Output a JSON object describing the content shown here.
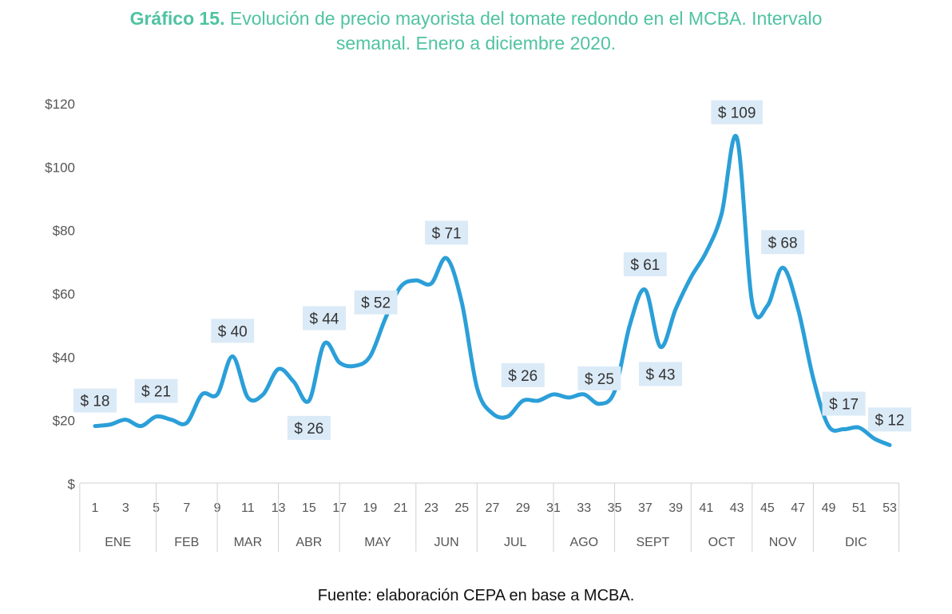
{
  "title": {
    "bold": "Gráfico 15.",
    "line1": "Evolución de precio mayorista del tomate redondo en el MCBA. Intervalo",
    "line2": "semanal. Enero a diciembre 2020."
  },
  "source": "Fuente: elaboración CEPA en base a MCBA.",
  "colors": {
    "title": "#4fc3a1",
    "line": "#2b9fd8",
    "label_bg": "#dbeaf7",
    "axis_text": "#555555",
    "axis_line": "#d0d0d0"
  },
  "chart_data": {
    "type": "line",
    "x": [
      1,
      2,
      3,
      4,
      5,
      6,
      7,
      8,
      9,
      10,
      11,
      12,
      13,
      14,
      15,
      16,
      17,
      18,
      19,
      20,
      21,
      22,
      23,
      24,
      25,
      26,
      27,
      28,
      29,
      30,
      31,
      32,
      33,
      34,
      35,
      36,
      37,
      38,
      39,
      40,
      41,
      42,
      43,
      44,
      45,
      46,
      47,
      48,
      49,
      50,
      51,
      52,
      53
    ],
    "values": [
      18,
      18.5,
      20,
      18,
      21,
      20,
      19,
      28,
      28,
      40,
      27,
      28,
      36,
      32,
      26,
      44,
      38,
      37,
      40,
      52,
      62,
      64,
      63,
      71,
      57,
      30,
      22,
      21,
      26,
      26,
      28,
      27,
      28,
      25,
      29,
      50,
      61,
      43,
      55,
      65,
      73,
      85,
      109,
      57,
      56,
      68,
      55,
      33,
      18,
      17,
      17.5,
      14,
      12
    ],
    "ylim": [
      0,
      120
    ],
    "y_ticks": [
      0,
      20,
      40,
      60,
      80,
      100,
      120
    ],
    "y_tick_labels": [
      "$",
      "$20",
      "$40",
      "$60",
      "$80",
      "$100",
      "$120"
    ],
    "x_tick_values": [
      1,
      3,
      5,
      7,
      9,
      11,
      13,
      15,
      17,
      19,
      21,
      23,
      25,
      27,
      29,
      31,
      33,
      35,
      37,
      39,
      41,
      43,
      45,
      47,
      49,
      51,
      53
    ],
    "x_tick_labels": [
      "1",
      "3",
      "5",
      "7",
      "9",
      "11",
      "13",
      "15",
      "17",
      "19",
      "21",
      "23",
      "25",
      "27",
      "29",
      "31",
      "33",
      "35",
      "37",
      "39",
      "41",
      "43",
      "45",
      "47",
      "49",
      "51",
      "53"
    ],
    "months": [
      {
        "label": "ENE",
        "start": 1,
        "end": 5
      },
      {
        "label": "FEB",
        "start": 5,
        "end": 9
      },
      {
        "label": "MAR",
        "start": 9,
        "end": 13
      },
      {
        "label": "ABR",
        "start": 13,
        "end": 17
      },
      {
        "label": "MAY",
        "start": 17,
        "end": 22
      },
      {
        "label": "JUN",
        "start": 22,
        "end": 26
      },
      {
        "label": "JUL",
        "start": 26,
        "end": 31
      },
      {
        "label": "AGO",
        "start": 31,
        "end": 35
      },
      {
        "label": "SEPT",
        "start": 35,
        "end": 40
      },
      {
        "label": "OCT",
        "start": 40,
        "end": 44
      },
      {
        "label": "NOV",
        "start": 44,
        "end": 48
      },
      {
        "label": "DIC",
        "start": 48,
        "end": 53
      }
    ],
    "data_labels": [
      {
        "week": 1,
        "value": 18,
        "text": "$ 18",
        "position": "above"
      },
      {
        "week": 5,
        "value": 21,
        "text": "$ 21",
        "position": "above"
      },
      {
        "week": 10,
        "value": 40,
        "text": "$ 40",
        "position": "above"
      },
      {
        "week": 15,
        "value": 26,
        "text": "$ 26",
        "position": "below"
      },
      {
        "week": 16,
        "value": 44,
        "text": "$ 44",
        "position": "above"
      },
      {
        "week": 20,
        "value": 52,
        "text": "$ 52",
        "position": "left"
      },
      {
        "week": 24,
        "value": 71,
        "text": "$ 71",
        "position": "above"
      },
      {
        "week": 29,
        "value": 26,
        "text": "$ 26",
        "position": "above"
      },
      {
        "week": 34,
        "value": 25,
        "text": "$ 25",
        "position": "above"
      },
      {
        "week": 37,
        "value": 61,
        "text": "$ 61",
        "position": "above"
      },
      {
        "week": 38,
        "value": 43,
        "text": "$ 43",
        "position": "below"
      },
      {
        "week": 43,
        "value": 109,
        "text": "$ 109",
        "position": "above"
      },
      {
        "week": 46,
        "value": 68,
        "text": "$ 68",
        "position": "above"
      },
      {
        "week": 50,
        "value": 17,
        "text": "$ 17",
        "position": "above"
      },
      {
        "week": 53,
        "value": 12,
        "text": "$ 12",
        "position": "above"
      }
    ],
    "grid": false,
    "legend": "none"
  }
}
